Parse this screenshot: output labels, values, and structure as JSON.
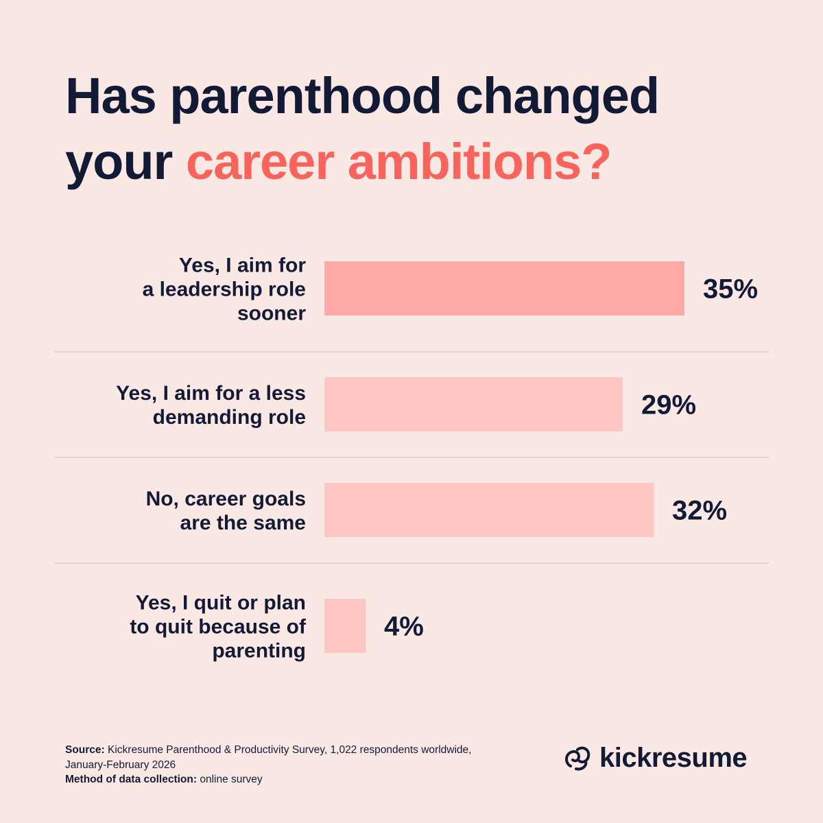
{
  "title": {
    "line1": "Has parenthood changed",
    "line2_plain": "your ",
    "line2_accent": "career ambitions?"
  },
  "colors": {
    "background": "#fae8e4",
    "text": "#121a36",
    "accent": "#f8635c",
    "bar_highlight": "#ffaaa8",
    "bar": "#ffc6c3",
    "divider": "#d9cfcc"
  },
  "chart_data": {
    "type": "bar",
    "orientation": "horizontal",
    "categories": [
      [
        "Yes, I aim for",
        "a leadership role",
        "sooner"
      ],
      [
        "Yes, I aim for a less",
        "demanding role"
      ],
      [
        "No, career goals",
        "are the same"
      ],
      [
        "Yes, I quit or plan",
        "to quit because of",
        "parenting"
      ]
    ],
    "values": [
      35,
      29,
      32,
      4
    ],
    "value_labels": [
      "35%",
      "29%",
      "32%",
      "4%"
    ],
    "unit": "%",
    "highlight_index": 0,
    "grid": false
  },
  "footer": {
    "source_label": "Source:",
    "source_text": " Kickresume Parenthood & Productivity Survey, 1,022 respondents worldwide,",
    "source_text2": "January-February 2026",
    "method_label": "Method of data collection:",
    "method_text": " online survey"
  },
  "brand": {
    "name": "kickresume",
    "icon": "kickresume-logo-icon"
  }
}
